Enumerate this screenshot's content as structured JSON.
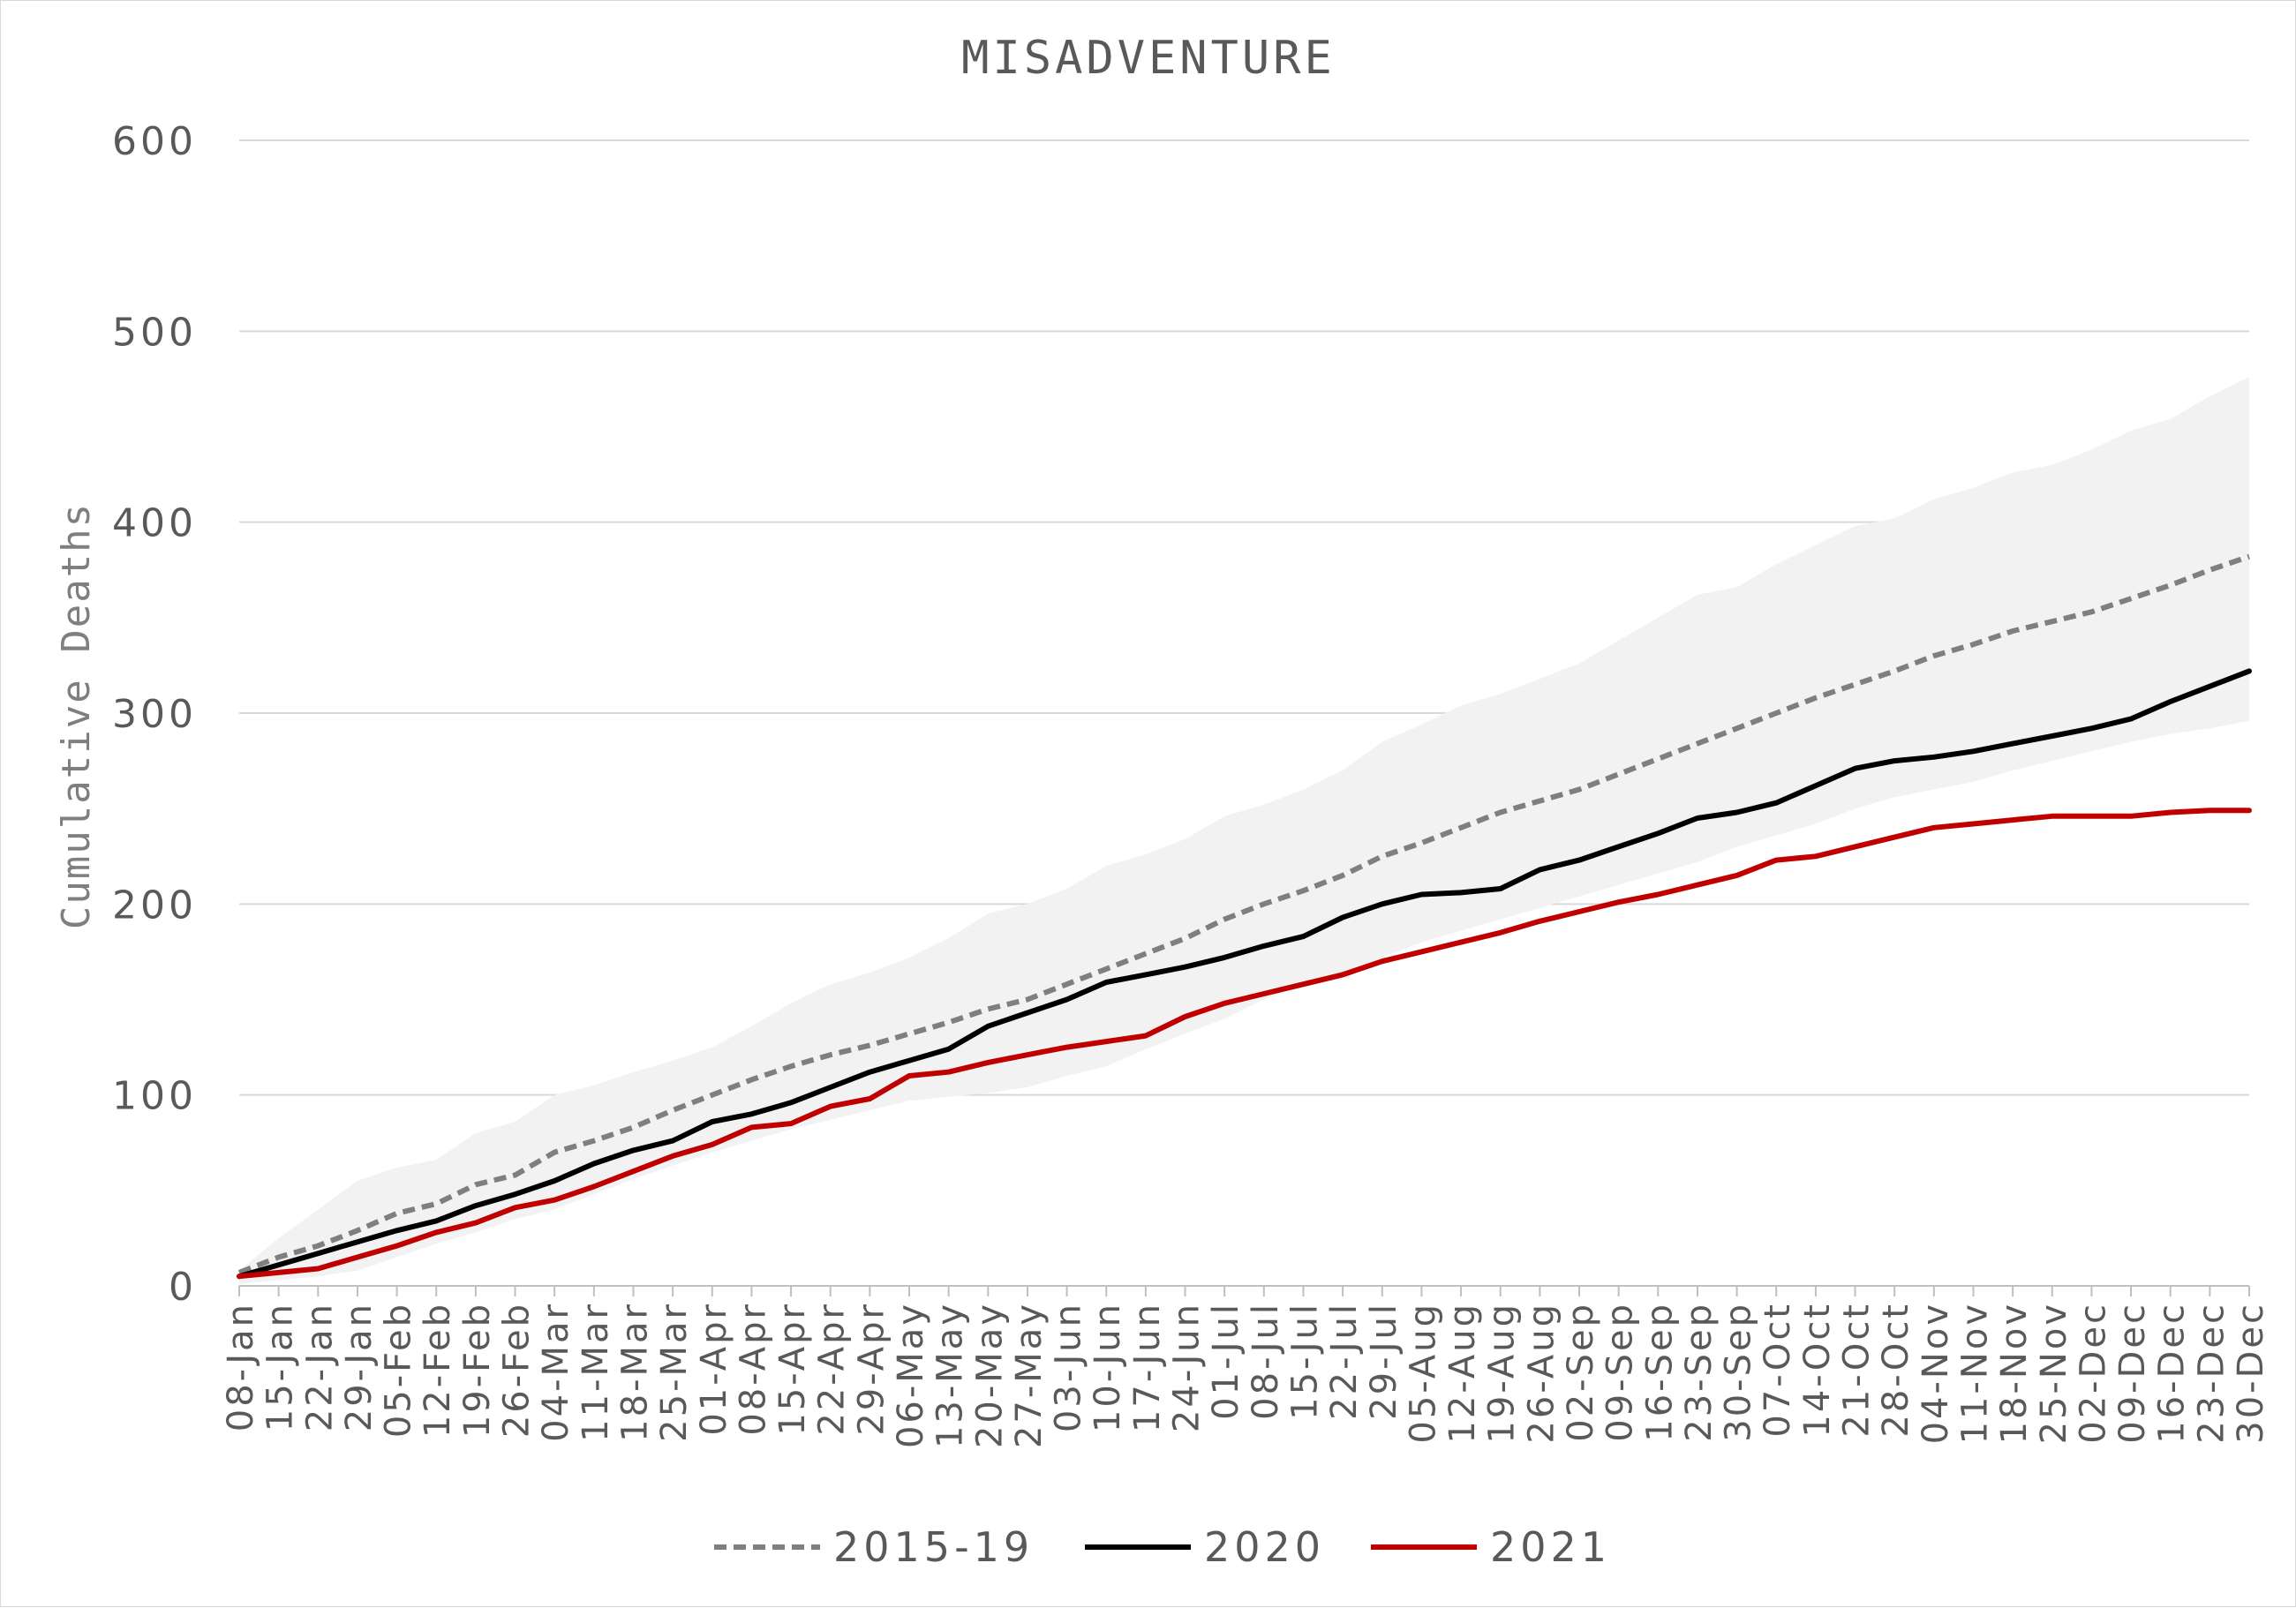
{
  "chart_data": {
    "type": "line",
    "title": "MISADVENTURE",
    "xlabel": "",
    "ylabel": "Cumulative Deaths",
    "ylim": [
      0,
      600
    ],
    "yticks": [
      0,
      100,
      200,
      300,
      400,
      500,
      600
    ],
    "grid": "horizontal",
    "legend_position": "bottom",
    "categories": [
      "08-Jan",
      "15-Jan",
      "22-Jan",
      "29-Jan",
      "05-Feb",
      "12-Feb",
      "19-Feb",
      "26-Feb",
      "04-Mar",
      "11-Mar",
      "18-Mar",
      "25-Mar",
      "01-Apr",
      "08-Apr",
      "15-Apr",
      "22-Apr",
      "29-Apr",
      "06-May",
      "13-May",
      "20-May",
      "27-May",
      "03-Jun",
      "10-Jun",
      "17-Jun",
      "24-Jun",
      "01-Jul",
      "08-Jul",
      "15-Jul",
      "22-Jul",
      "29-Jul",
      "05-Aug",
      "12-Aug",
      "19-Aug",
      "26-Aug",
      "02-Sep",
      "09-Sep",
      "16-Sep",
      "23-Sep",
      "30-Sep",
      "07-Oct",
      "14-Oct",
      "21-Oct",
      "28-Oct",
      "04-Nov",
      "11-Nov",
      "18-Nov",
      "25-Nov",
      "02-Dec",
      "09-Dec",
      "16-Dec",
      "23-Dec",
      "30-Dec"
    ],
    "range_band": {
      "color": "#f2f2f2",
      "upper": [
        8,
        25,
        40,
        55,
        62,
        66,
        80,
        86,
        100,
        105,
        112,
        118,
        125,
        136,
        148,
        158,
        164,
        172,
        182,
        195,
        200,
        208,
        220,
        226,
        234,
        246,
        252,
        260,
        270,
        285,
        294,
        304,
        310,
        318,
        326,
        338,
        350,
        362,
        366,
        378,
        388,
        398,
        402,
        412,
        418,
        426,
        430,
        438,
        448,
        454,
        466,
        476
      ],
      "lower": [
        1,
        3,
        5,
        8,
        15,
        22,
        28,
        35,
        40,
        48,
        56,
        63,
        70,
        76,
        82,
        87,
        92,
        97,
        99,
        101,
        104,
        110,
        115,
        124,
        132,
        140,
        150,
        158,
        164,
        172,
        180,
        186,
        192,
        198,
        204,
        210,
        216,
        222,
        230,
        236,
        242,
        250,
        256,
        260,
        264,
        270,
        275,
        280,
        285,
        289,
        292,
        296
      ]
    },
    "series": [
      {
        "name": "2015-19",
        "color": "#7f7f7f",
        "style": "dashed",
        "values": [
          7,
          15,
          21,
          29,
          38,
          43,
          53,
          58,
          70,
          76,
          83,
          92,
          100,
          108,
          115,
          121,
          126,
          132,
          138,
          145,
          150,
          158,
          166,
          174,
          182,
          192,
          200,
          207,
          215,
          225,
          232,
          240,
          248,
          254,
          260,
          268,
          276,
          284,
          292,
          300,
          308,
          315,
          322,
          330,
          336,
          343,
          348,
          353,
          360,
          367,
          375,
          382
        ]
      },
      {
        "name": "2020",
        "color": "#000000",
        "style": "solid",
        "values": [
          5,
          11,
          17,
          23,
          29,
          34,
          42,
          48,
          55,
          64,
          71,
          76,
          86,
          90,
          96,
          104,
          112,
          118,
          124,
          136,
          143,
          150,
          159,
          163,
          167,
          172,
          178,
          183,
          193,
          200,
          205,
          206,
          208,
          218,
          223,
          230,
          237,
          245,
          248,
          253,
          262,
          271,
          275,
          277,
          280,
          284,
          288,
          292,
          297,
          306,
          314,
          322
        ]
      },
      {
        "name": "2021",
        "color": "#c00000",
        "style": "solid",
        "values": [
          5,
          7,
          9,
          15,
          21,
          28,
          33,
          41,
          45,
          52,
          60,
          68,
          74,
          83,
          85,
          94,
          98,
          110,
          112,
          117,
          121,
          125,
          128,
          131,
          141,
          148,
          153,
          158,
          163,
          170,
          175,
          180,
          185,
          191,
          196,
          201,
          205,
          210,
          215,
          223,
          225,
          230,
          235,
          240,
          242,
          244,
          246,
          246,
          246,
          248,
          249,
          249
        ]
      }
    ]
  }
}
